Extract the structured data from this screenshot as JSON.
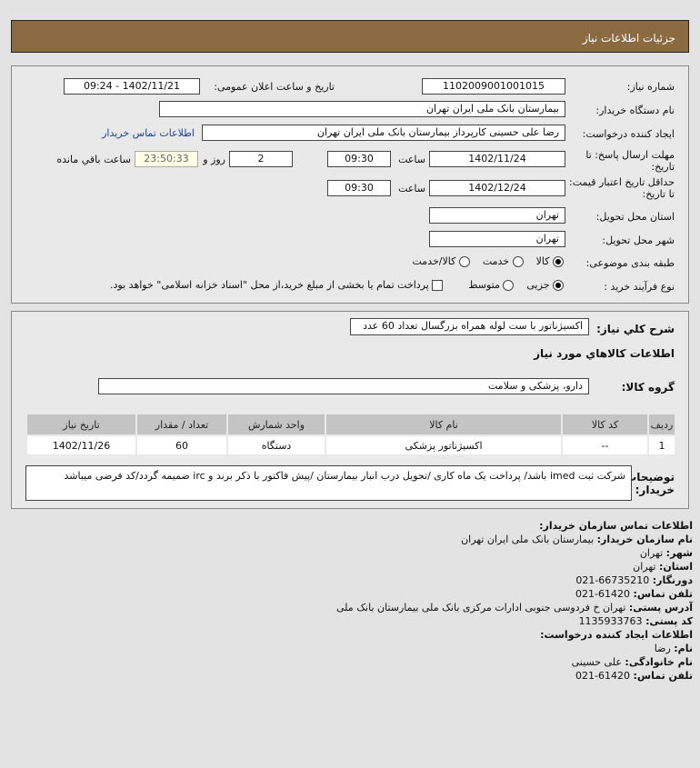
{
  "header": {
    "title": "جزئیات اطلاعات نیاز"
  },
  "form": {
    "need_number_label": "شماره نیاز:",
    "need_number": "1102009001001015",
    "announce_label": "تاریخ و ساعت اعلان عمومی:",
    "announce_value": "1402/11/21 - 09:24",
    "buyer_label": "نام دستگاه خریدار:",
    "buyer": "بیمارستان بانک ملی ایران تهران",
    "creator_label": "ایجاد کننده درخواست:",
    "creator": "رضا علی حسینی کارپرداز بیمارستان بانک ملی ایران تهران",
    "contact_link": "اطلاعات تماس خریدار",
    "deadline_label": "مهلت ارسال پاسخ: تا تاریخ:",
    "deadline_date": "1402/11/24",
    "time_label": "ساعت",
    "deadline_time": "09:30",
    "days": "2",
    "days_label": "روز و",
    "remaining": "23:50:33",
    "remaining_label": "ساعت باقي مانده",
    "validity_label": "حداقل تاریخ اعتبار قیمت: تا تاریخ:",
    "validity_date": "1402/12/24",
    "validity_time": "09:30",
    "province_label": "استان محل تحویل:",
    "province": "تهران",
    "city_label": "شهر محل تحویل:",
    "city": "تهران",
    "category_label": "طبقه بندی موضوعی:",
    "category_options": [
      "کالا",
      "خدمت",
      "کالا/خدمت"
    ],
    "process_label": "نوع فرآیند خرید :",
    "process_options": [
      "جزیی",
      "متوسط"
    ],
    "payment_note": "پرداخت تمام یا بخشی از مبلغ خرید،از محل \"اسناد خزانه اسلامی\" خواهد بود."
  },
  "details": {
    "summary_label": "شرح کلي نياز:",
    "summary": "اکسیژناتور با ست لوله همراه بزرگسال تعداد 60 عدد",
    "goods_heading": "اطلاعات کالاهاي مورد نياز",
    "group_label": "گروه کالا:",
    "group": "دارو، پزشکی و سلامت",
    "table": {
      "headers": [
        "ردیف",
        "کد کالا",
        "نام کالا",
        "واحد شمارش",
        "تعداد / مقدار",
        "تاریخ نیاز"
      ],
      "rows": [
        [
          "1",
          "--",
          "اکسیژناتور پزشکی",
          "دستگاه",
          "60",
          "1402/11/26"
        ]
      ]
    },
    "notes_label": "توضیحات خریدار:",
    "notes": "شرکت ثبت imed باشد/ پرداخت یک ماه کاری /تحویل درب انبار بیمارستان /پیش فاکتور با ذکر برند و irc ضمیمه گردد/کد فرضی میباشد"
  },
  "contact": {
    "heading": "اطلاعات تماس سازمان خریدار:",
    "org_label": "نام سازمان خریدار:",
    "org": "بیمارستان بانک ملی ایران تهران",
    "city_label": "شهر:",
    "city": "تهران",
    "province_label": "استان:",
    "province": "تهران",
    "fax_label": "دورنگار:",
    "fax": "021-66735210",
    "phone_label": "تلفن تماس:",
    "phone": "021-61420",
    "address_label": "آدرس پستی:",
    "address": "تهران خ فردوسی جنوبی ادارات مرکزی بانک ملی بیمارستان بانک ملی",
    "postal_label": "کد پستی:",
    "postal": "1135933763",
    "creator_heading": "اطلاعات ایجاد کننده درخواست:",
    "name_label": "نام:",
    "name": "رضا",
    "family_label": "نام خانوادگی:",
    "family": "علی حسینی",
    "creator_phone_label": "تلفن تماس:",
    "creator_phone": "021-61420"
  }
}
